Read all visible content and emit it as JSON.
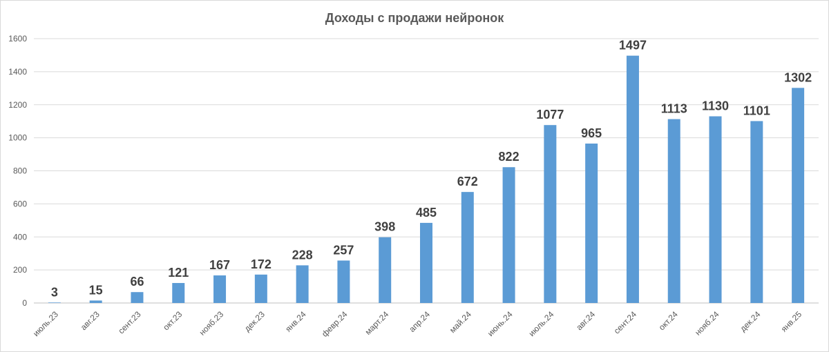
{
  "chart_data": {
    "type": "bar",
    "title": "Доходы с продажи нейронок",
    "xlabel": "",
    "ylabel": "",
    "categories": [
      "июль.23",
      "авг.23",
      "сент.23",
      "окт.23",
      "нояб.23",
      "дек.23",
      "янв.24",
      "февр.24",
      "март.24",
      "апр.24",
      "май.24",
      "июнь.24",
      "июль.24",
      "авг.24",
      "сент.24",
      "окт.24",
      "нояб.24",
      "дек.24",
      "янв.25"
    ],
    "values": [
      3,
      15,
      66,
      121,
      167,
      172,
      228,
      257,
      398,
      485,
      672,
      822,
      1077,
      965,
      1497,
      1113,
      1130,
      1101,
      1302
    ],
    "data_labels": [
      "3",
      "15",
      "66",
      "121",
      "167",
      "172",
      "228",
      "257",
      "398",
      "485",
      "672",
      "822",
      "1077",
      "965",
      "1497",
      "1113",
      "1130",
      "1101",
      "1302"
    ],
    "ylim": [
      0,
      1600
    ],
    "yticks": [
      0,
      200,
      400,
      600,
      800,
      1000,
      1200,
      1400,
      1600
    ],
    "ytick_labels": [
      "0",
      "200",
      "400",
      "600",
      "800",
      "1000",
      "1200",
      "1400",
      "1600"
    ],
    "grid": true,
    "bar_color": "#5b9bd5"
  }
}
